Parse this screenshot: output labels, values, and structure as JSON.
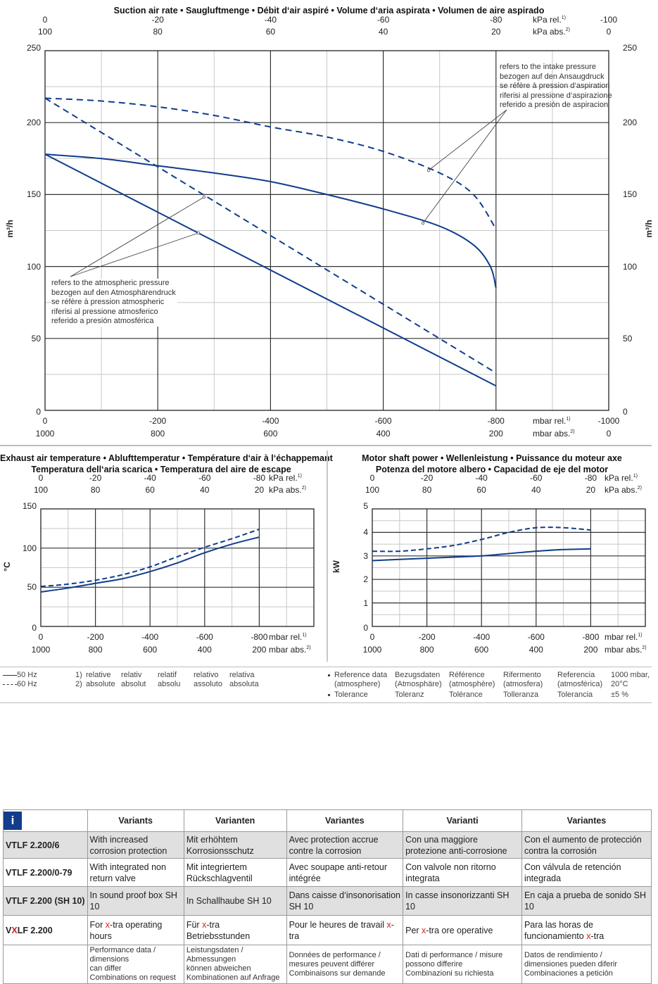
{
  "chart_data": [
    {
      "type": "line",
      "title": "Suction air rate • Saugluftmenge • Débit d‘air aspiré • Volume d‘aria aspirata • Volumen de aire aspirado",
      "xlabel_rel": "mbar rel.",
      "xlabel_abs": "mbar abs.",
      "xlabel_top_rel": "kPa rel.",
      "xlabel_top_abs": "kPa abs.",
      "ylabel": "m³/h",
      "xlim": [
        0,
        -1000
      ],
      "ylim": [
        0,
        250
      ],
      "x_ticks_rel": [
        "0",
        "-200",
        "-400",
        "-600",
        "-800",
        "-1000"
      ],
      "x_ticks_abs": [
        "1000",
        "800",
        "600",
        "400",
        "200",
        "0"
      ],
      "x_top_ticks_rel": [
        "0",
        "-20",
        "-40",
        "-60",
        "-80",
        "-100"
      ],
      "x_top_ticks_abs": [
        "100",
        "80",
        "60",
        "40",
        "20",
        "0"
      ],
      "y_ticks": [
        "0",
        "50",
        "100",
        "150",
        "200",
        "250"
      ],
      "grid": true,
      "series": [
        {
          "name": "60 Hz intake pressure",
          "style": "dashed",
          "x": [
            0,
            -100,
            -200,
            -300,
            -400,
            -500,
            -600,
            -700,
            -760,
            -800
          ],
          "y": [
            217,
            215,
            211,
            205,
            197,
            190,
            180,
            165,
            150,
            126
          ]
        },
        {
          "name": "50 Hz intake pressure",
          "style": "solid",
          "x": [
            0,
            -100,
            -200,
            -300,
            -400,
            -500,
            -600,
            -700,
            -760,
            -790,
            -800
          ],
          "y": [
            178,
            175,
            170,
            165,
            159,
            150,
            140,
            128,
            115,
            100,
            85
          ]
        },
        {
          "name": "60 Hz atmospheric pressure",
          "style": "dashed",
          "x": [
            0,
            -800
          ],
          "y": [
            217,
            26
          ]
        },
        {
          "name": "50 Hz atmospheric pressure",
          "style": "solid",
          "x": [
            0,
            -800
          ],
          "y": [
            178,
            17
          ]
        }
      ],
      "annotations": {
        "intake": [
          "refers to the intake pressure",
          "bezogen auf den Ansaugdruck",
          "se réfère à pression d‘aspiration",
          "riferisi al pressione d‘aspirazione",
          "referido a presión de aspiracion"
        ],
        "atmospheric": [
          "refers to the atmospheric pressure",
          "bezogen auf den Atmosphärendruck",
          "se réfère à pression atmospheric",
          "riferisi al pressione atmosferico",
          "referido a presión atmosférica"
        ]
      }
    },
    {
      "type": "line",
      "title_line1": "Exhaust air temperature • Ablufttemperatur • Température d‘air à l‘échappemant",
      "title_line2": "Temperatura dell‘aria scarica • Temperatura del aire de escape",
      "ylabel": "°C",
      "xlim": [
        0,
        -1000
      ],
      "ylim": [
        0,
        150
      ],
      "x_ticks_rel": [
        "0",
        "-200",
        "-400",
        "-600",
        "-800"
      ],
      "x_ticks_abs": [
        "1000",
        "800",
        "600",
        "400",
        "200"
      ],
      "x_top_ticks_rel": [
        "0",
        "-20",
        "-40",
        "-60",
        "-80"
      ],
      "x_top_ticks_abs": [
        "100",
        "80",
        "60",
        "40",
        "20"
      ],
      "y_ticks": [
        "0",
        "50",
        "100",
        "150"
      ],
      "grid": true,
      "series": [
        {
          "name": "50 Hz",
          "style": "solid",
          "x": [
            0,
            -100,
            -200,
            -300,
            -400,
            -500,
            -600,
            -700,
            -800
          ],
          "y": [
            44,
            49,
            55,
            61,
            70,
            81,
            94,
            105,
            114
          ]
        },
        {
          "name": "60 Hz",
          "style": "dashed",
          "x": [
            0,
            -100,
            -200,
            -300,
            -400,
            -500,
            -600,
            -700,
            -800
          ],
          "y": [
            51,
            54,
            59,
            66,
            76,
            89,
            101,
            112,
            124
          ]
        }
      ]
    },
    {
      "type": "line",
      "title_line1": "Motor shaft power • Wellenleistung • Puissance du moteur axe",
      "title_line2": "Potenza del motore albero • Capacidad de eje del motor",
      "ylabel": "kW",
      "xlim": [
        0,
        -1000
      ],
      "ylim": [
        0,
        5
      ],
      "x_ticks_rel": [
        "0",
        "-200",
        "-400",
        "-600",
        "-800"
      ],
      "x_ticks_abs": [
        "1000",
        "800",
        "600",
        "400",
        "200"
      ],
      "x_top_ticks_rel": [
        "0",
        "-20",
        "-40",
        "-60",
        "-80"
      ],
      "x_top_ticks_abs": [
        "100",
        "80",
        "60",
        "40",
        "20"
      ],
      "y_ticks": [
        "0",
        "1",
        "2",
        "3",
        "4",
        "5"
      ],
      "grid": true,
      "series": [
        {
          "name": "50 Hz",
          "style": "solid",
          "x": [
            0,
            -100,
            -200,
            -300,
            -400,
            -500,
            -600,
            -700,
            -800
          ],
          "y": [
            2.8,
            2.85,
            2.9,
            2.95,
            3.0,
            3.1,
            3.2,
            3.27,
            3.3
          ]
        },
        {
          "name": "60 Hz",
          "style": "dashed",
          "x": [
            0,
            -100,
            -200,
            -300,
            -400,
            -500,
            -600,
            -700,
            -800
          ],
          "y": [
            3.2,
            3.2,
            3.3,
            3.45,
            3.7,
            4.0,
            4.2,
            4.2,
            4.1
          ]
        }
      ]
    }
  ],
  "units": {
    "kpa_rel": "kPa rel.",
    "kpa_abs": "kPa abs.",
    "mbar_rel": "mbar rel.",
    "mbar_abs": "mbar abs.",
    "sup1": "1)",
    "sup2": "2)",
    "m3h": "m³/h"
  },
  "colors": {
    "curve": "#0f3d8c",
    "grid_major": "#333333",
    "grid_minor": "#c8c8c8",
    "info_bg": "#123c8c",
    "x_red": "#d01f1f"
  },
  "legend": {
    "hz50": "50 Hz",
    "hz60": "60 Hz",
    "footnotes": [
      {
        "num": "1)",
        "words": [
          "relative",
          "relativ",
          "relatif",
          "relativo",
          "relativa"
        ]
      },
      {
        "num": "2)",
        "words": [
          "absolute",
          "absolut",
          "absolu",
          "assoluto",
          "absoluta"
        ]
      }
    ],
    "reference": {
      "bullet1": [
        "Reference data",
        "Bezugsdaten",
        "Référence",
        "Rifermento",
        "Referencia",
        "1000 mbar,"
      ],
      "bullet1b": [
        "(atmosphere)",
        "(Atmosphäre)",
        "(atmosphère)",
        "(atmosfera)",
        "(atmosférica)",
        "20°C"
      ],
      "bullet2": [
        "Tolerance",
        "Toleranz",
        "Tolérance",
        "Tolleranza",
        "Tolerancia",
        "±5 %"
      ]
    }
  },
  "variants": {
    "info_icon": "i",
    "headers": [
      "Variants",
      "Varianten",
      "Variantes",
      "Varianti",
      "Variantes"
    ],
    "rows": [
      {
        "model": "VTLF 2.200/6",
        "cells": [
          "With increased corrosion protection",
          "Mit erhöhtem Korrosionsschutz",
          "Avec protection accrue contre la corrosion",
          "Con una maggiore protezione anti-corrosione",
          "Con el aumento de protección contra la corrosión"
        ]
      },
      {
        "model": "VTLF 2.200/0-79",
        "cells": [
          "With integrated non return valve",
          "Mit integriertem Rückschlagventil",
          "Avec soupape anti-retour intégrée",
          "Con valvole non ritorno integrata",
          "Con válvula de retención integrada"
        ]
      },
      {
        "model": "VTLF 2.200 (SH 10)",
        "cells": [
          "In sound proof box SH 10",
          "In Schallhaube SH 10",
          "Dans caisse d‘insonorisation SH 10",
          "In casse insonorizzanti SH 10",
          "En caja a prueba de sonido SH 10"
        ]
      }
    ],
    "xtra": {
      "model_v": "V",
      "model_x": "X",
      "model_rest": "LF 2.200",
      "cells": [
        {
          "pre": "For ",
          "x": "x",
          "post": "-tra operating hours"
        },
        {
          "pre": "Für ",
          "x": "x",
          "post": "-tra Betriebsstunden"
        },
        {
          "pre": "Pour le heures de travail ",
          "x": "x",
          "post": "-tra"
        },
        {
          "pre": "Per ",
          "x": "x",
          "post": "-tra ore operative"
        },
        {
          "pre": "Para las horas de funcionamiento ",
          "x": "x",
          "post": "-tra"
        }
      ]
    },
    "footer": [
      [
        "Performance data / dimensions",
        "can differ",
        "Combinations on request"
      ],
      [
        "Leistungsdaten / Abmessungen",
        "können abweichen",
        "Kombinationen auf Anfrage"
      ],
      [
        "Données de performance /",
        "mesures peuvent différer",
        "Combinaisons sur demande"
      ],
      [
        "Dati di performance / misure",
        "possono differire",
        "Combinazioni su richiesta"
      ],
      [
        "Datos de rendimiento /",
        "dimensiones pueden diferir",
        "Combinaciones a petición"
      ]
    ]
  }
}
